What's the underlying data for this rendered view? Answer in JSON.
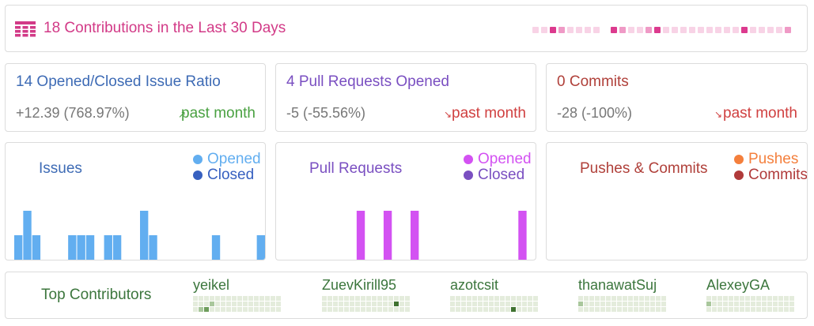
{
  "header": {
    "title": "18 Contributions in the Last 30 Days",
    "icon": "calendar-grid-icon",
    "accent_color": "#d23a87",
    "daily_levels": [
      1,
      1,
      3,
      2,
      1,
      1,
      1,
      1,
      0,
      3,
      2,
      1,
      1,
      2,
      3,
      1,
      1,
      1,
      1,
      1,
      1,
      1,
      1,
      1,
      3,
      1,
      1,
      1,
      1,
      2
    ]
  },
  "stats": {
    "issues": {
      "title": "14 Opened/Closed Issue Ratio",
      "delta": "+12.39 (768.97%)",
      "period": "past month",
      "trend": "up",
      "title_color": "#3e6bb5",
      "trend_color": "#4aa142"
    },
    "prs": {
      "title": "4 Pull Requests Opened",
      "delta": "-5 (-55.56%)",
      "period": "past month",
      "trend": "down",
      "title_color": "#7a4fc1",
      "trend_color": "#d04040"
    },
    "commits": {
      "title": "0 Commits",
      "delta": "-28 (-100%)",
      "period": "past month",
      "trend": "down",
      "title_color": "#b0403a",
      "trend_color": "#d04040"
    }
  },
  "chart_data": [
    {
      "type": "bar",
      "title": "Issues",
      "series": [
        {
          "name": "Opened",
          "color": "#62aef0",
          "values": [
            2,
            4,
            2,
            0,
            0,
            0,
            2,
            2,
            2,
            0,
            2,
            2,
            0,
            0,
            4,
            2,
            0,
            0,
            0,
            0,
            0,
            0,
            2,
            0,
            0,
            0,
            0,
            2
          ]
        },
        {
          "name": "Closed",
          "color": "#3760c0",
          "values": [
            0,
            0,
            0,
            0,
            0,
            0,
            0,
            0,
            0,
            0,
            0,
            0,
            0,
            0,
            0,
            0,
            0,
            0,
            0,
            0,
            0,
            0,
            0,
            0,
            0,
            0,
            0,
            0
          ]
        }
      ],
      "ylim": [
        0,
        4
      ]
    },
    {
      "type": "bar",
      "title": "Pull Requests",
      "series": [
        {
          "name": "Opened",
          "color": "#d352f2",
          "values": [
            0,
            0,
            0,
            0,
            0,
            0,
            0,
            0,
            1,
            0,
            0,
            1,
            0,
            0,
            1,
            0,
            0,
            0,
            0,
            0,
            0,
            0,
            0,
            0,
            0,
            0,
            1,
            0
          ]
        },
        {
          "name": "Closed",
          "color": "#7a4fc1",
          "values": [
            0,
            0,
            0,
            0,
            0,
            0,
            0,
            0,
            0,
            0,
            0,
            0,
            0,
            0,
            0,
            0,
            0,
            0,
            0,
            0,
            0,
            0,
            0,
            0,
            0,
            0,
            0,
            0
          ]
        }
      ],
      "ylim": [
        0,
        1
      ]
    },
    {
      "type": "bar",
      "title": "Pushes & Commits",
      "series": [
        {
          "name": "Pushes",
          "color": "#f47f3c",
          "values": [
            0,
            0,
            0,
            0,
            0,
            0,
            0,
            0,
            0,
            0,
            0,
            0,
            0,
            0,
            0,
            0,
            0,
            0,
            0,
            0,
            0,
            0,
            0,
            0,
            0,
            0,
            0,
            0
          ]
        },
        {
          "name": "Commits",
          "color": "#b03a3a",
          "values": [
            0,
            0,
            0,
            0,
            0,
            0,
            0,
            0,
            0,
            0,
            0,
            0,
            0,
            0,
            0,
            0,
            0,
            0,
            0,
            0,
            0,
            0,
            0,
            0,
            0,
            0,
            0,
            0
          ]
        }
      ],
      "ylim": [
        0,
        1
      ]
    }
  ],
  "contributors": {
    "title": "Top Contributors",
    "people": [
      {
        "name": "yeikel",
        "active_cells": [
          [
            2,
            2,
            2
          ],
          [
            1,
            3,
            1
          ],
          [
            2,
            1,
            1
          ]
        ]
      },
      {
        "name": "ZuevKirill95",
        "active_cells": [
          [
            1,
            13,
            3
          ]
        ]
      },
      {
        "name": "azotcsit",
        "active_cells": [
          [
            2,
            11,
            3
          ]
        ]
      },
      {
        "name": "thanawatSuj",
        "active_cells": [
          [
            1,
            0,
            1
          ]
        ]
      },
      {
        "name": "AlexeyGA",
        "active_cells": [
          [
            1,
            0,
            1
          ]
        ]
      }
    ]
  }
}
